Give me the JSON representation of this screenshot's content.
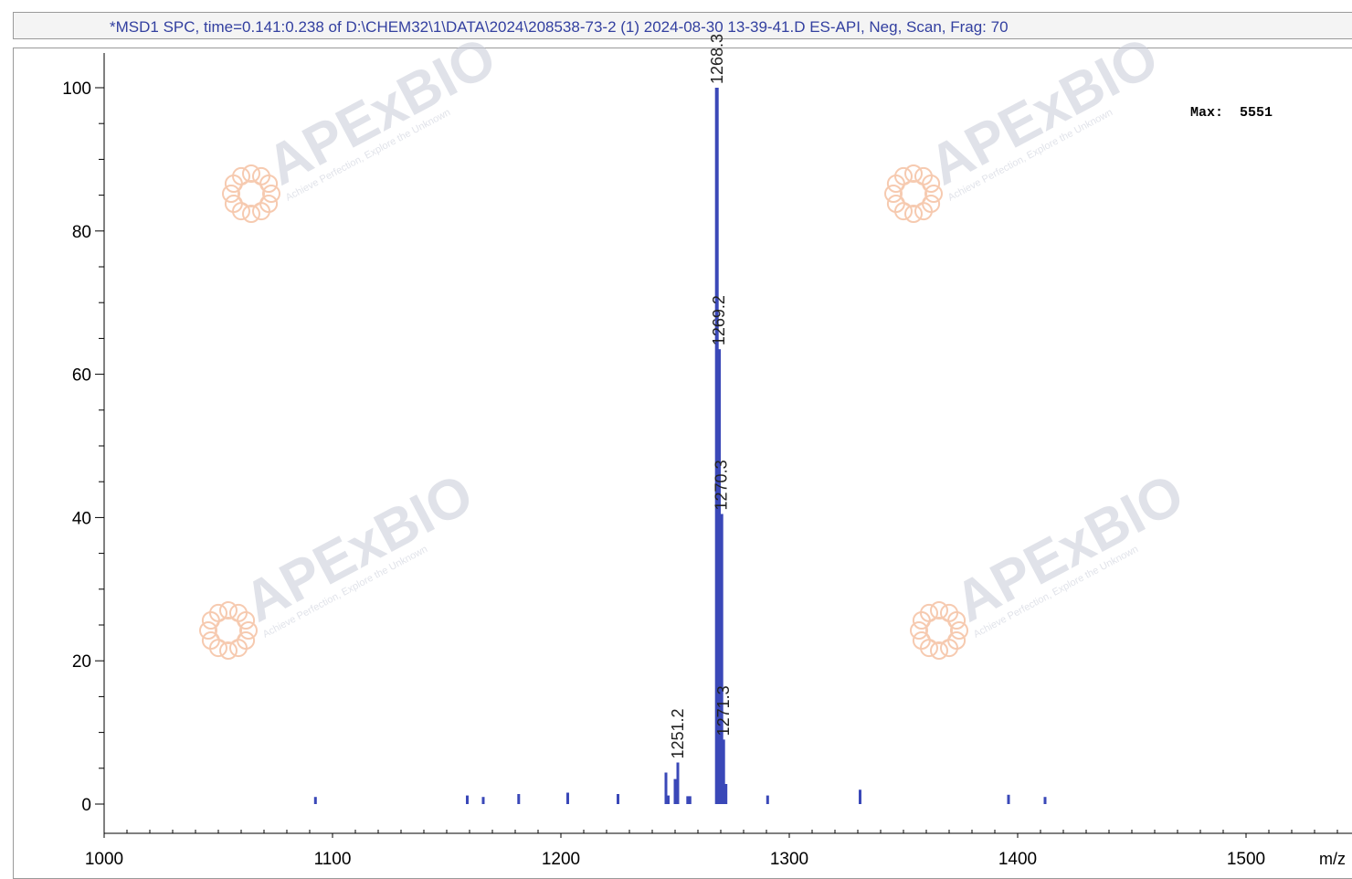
{
  "header": {
    "title": "*MSD1 SPC, time=0.141:0.238 of D:\\CHEM32\\1\\DATA\\2024\\208538-73-2 (1) 2024-08-30 13-39-41.D    ES-API, Neg, Scan, Frag: 70"
  },
  "annotation": {
    "max_label": "Max:  5551"
  },
  "watermark": {
    "brand": "APExBIO",
    "tagline": "Achieve Perfection, Explore the Unknown"
  },
  "colors": {
    "trace": "#3a48b8",
    "axis": "#000000",
    "title": "#3340a0",
    "watermark": "#c8ccd8",
    "watermark_x": "#f0a070"
  },
  "chart_data": {
    "type": "bar",
    "title": "",
    "xlabel": "m/z",
    "ylabel": "",
    "xlim": [
      1000,
      1550
    ],
    "ylim": [
      -4,
      105
    ],
    "xticks": [
      1000,
      1100,
      1200,
      1300,
      1400,
      1500
    ],
    "yticks": [
      0,
      20,
      40,
      60,
      80,
      100
    ],
    "x_tick_labels": [
      "1000",
      "1100",
      "1200",
      "1300",
      "1400",
      "1500"
    ],
    "y_tick_labels": [
      "0",
      "20",
      "40",
      "60",
      "80",
      "100"
    ],
    "grid": false,
    "legend": "none",
    "peaks": [
      {
        "mz": 1092.5,
        "value": 1.0
      },
      {
        "mz": 1159.0,
        "value": 1.2
      },
      {
        "mz": 1166.0,
        "value": 1.0
      },
      {
        "mz": 1181.5,
        "value": 1.4
      },
      {
        "mz": 1203.0,
        "value": 1.6
      },
      {
        "mz": 1225.0,
        "value": 1.4
      },
      {
        "mz": 1246.0,
        "value": 4.4
      },
      {
        "mz": 1247.0,
        "value": 1.2
      },
      {
        "mz": 1250.0,
        "value": 3.5
      },
      {
        "mz": 1251.2,
        "value": 5.8
      },
      {
        "mz": 1255.5,
        "value": 1.1
      },
      {
        "mz": 1256.5,
        "value": 1.1
      },
      {
        "mz": 1268.3,
        "value": 100
      },
      {
        "mz": 1269.2,
        "value": 63.5
      },
      {
        "mz": 1270.3,
        "value": 40.5
      },
      {
        "mz": 1271.3,
        "value": 9.0
      },
      {
        "mz": 1272.3,
        "value": 2.8
      },
      {
        "mz": 1290.5,
        "value": 1.2
      },
      {
        "mz": 1331.0,
        "value": 2.0
      },
      {
        "mz": 1396.0,
        "value": 1.3
      },
      {
        "mz": 1412.0,
        "value": 1.0
      }
    ],
    "peak_labels": [
      "1268.3",
      "1269.2",
      "1270.3",
      "1271.3",
      "1251.2"
    ]
  }
}
